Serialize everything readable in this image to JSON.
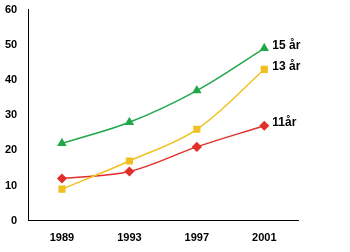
{
  "chart_data": {
    "type": "line",
    "categories": [
      "1989",
      "1993",
      "1997",
      "2001"
    ],
    "series": [
      {
        "name": "15 år",
        "color": "#22a84a",
        "marker": "triangle",
        "values": [
          22,
          28,
          37,
          49
        ]
      },
      {
        "name": "13 år",
        "color": "#f0c020",
        "marker": "square",
        "values": [
          9,
          17,
          26,
          43
        ]
      },
      {
        "name": "11år",
        "color": "#e0302a",
        "marker": "diamond",
        "values": [
          12,
          14,
          21,
          27
        ]
      }
    ],
    "ylim": [
      0,
      60
    ],
    "yticks": [
      0,
      10,
      20,
      30,
      40,
      50,
      60
    ],
    "grid": false
  }
}
